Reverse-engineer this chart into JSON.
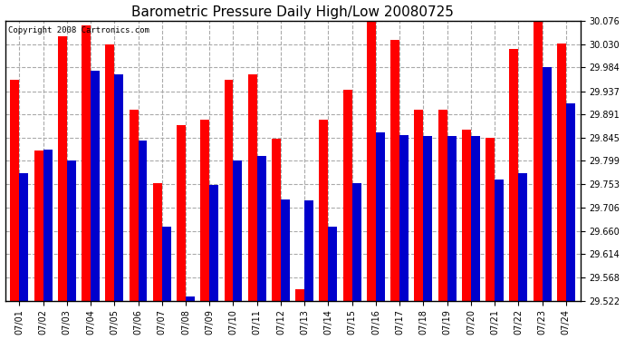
{
  "title": "Barometric Pressure Daily High/Low 20080725",
  "copyright": "Copyright 2008 Cartronics.com",
  "dates": [
    "07/01",
    "07/02",
    "07/03",
    "07/04",
    "07/05",
    "07/06",
    "07/07",
    "07/08",
    "07/09",
    "07/10",
    "07/11",
    "07/12",
    "07/13",
    "07/14",
    "07/15",
    "07/16",
    "07/17",
    "07/18",
    "07/19",
    "07/20",
    "07/21",
    "07/22",
    "07/23",
    "07/24"
  ],
  "highs": [
    29.96,
    29.82,
    30.045,
    30.068,
    30.03,
    29.9,
    29.755,
    29.87,
    29.88,
    29.96,
    29.97,
    29.843,
    29.545,
    29.88,
    29.94,
    30.093,
    30.038,
    29.9,
    29.9,
    29.86,
    29.845,
    30.02,
    30.083,
    30.032
  ],
  "lows": [
    29.775,
    29.822,
    29.8,
    29.978,
    29.97,
    29.84,
    29.668,
    29.53,
    29.752,
    29.8,
    29.808,
    29.722,
    29.72,
    29.668,
    29.755,
    29.855,
    29.85,
    29.848,
    29.848,
    29.848,
    29.762,
    29.775,
    29.984,
    29.912
  ],
  "high_color": "#ff0000",
  "low_color": "#0000cc",
  "bg_color": "#ffffff",
  "grid_color": "#aaaaaa",
  "ymin": 29.522,
  "ymax": 30.076,
  "yticks": [
    29.522,
    29.568,
    29.614,
    29.66,
    29.706,
    29.753,
    29.799,
    29.845,
    29.891,
    29.937,
    29.984,
    30.03,
    30.076
  ],
  "bar_width": 0.38,
  "figwidth": 6.9,
  "figheight": 3.75,
  "dpi": 100
}
